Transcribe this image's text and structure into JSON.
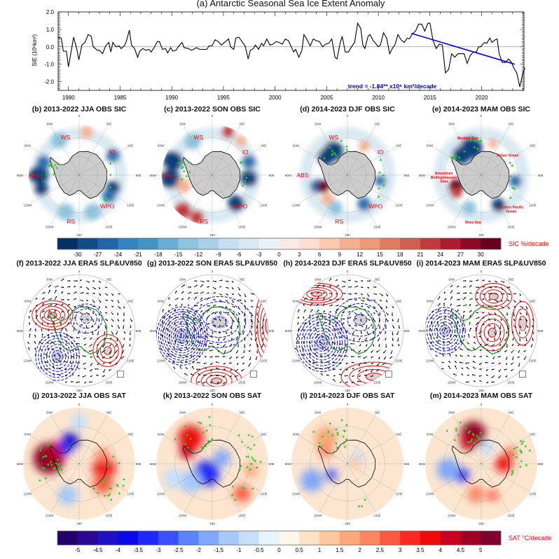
{
  "chart_data": [
    {
      "type": "line",
      "title": "(a) Antarctic Seasonal Sea Ice Extent Anomaly",
      "ylabel": "SIE (10⁶km²)",
      "xlabel": "",
      "ylim": [
        -2.5,
        2.0
      ],
      "xlim": [
        1979,
        2024.1
      ],
      "yticks": [
        "2.0",
        "1.0",
        "0.0",
        "-1.0",
        "-2.0"
      ],
      "ytick_values": [
        2,
        1,
        0,
        -1,
        -2
      ],
      "xticks": [
        "1980",
        "1985",
        "1990",
        "1995",
        "2000",
        "2005",
        "2010",
        "2015",
        "2020"
      ],
      "zero_line": true,
      "series": [
        {
          "color": "#000000",
          "points": [
            [
              1979.0,
              0.55
            ],
            [
              1979.3,
              0.5
            ],
            [
              1979.5,
              -0.25
            ],
            [
              1979.8,
              -0.25
            ],
            [
              1980.0,
              -1.15
            ],
            [
              1980.5,
              0.55
            ],
            [
              1980.8,
              -0.1
            ],
            [
              1981.0,
              -0.75
            ],
            [
              1981.3,
              0.1
            ],
            [
              1981.6,
              0.25
            ],
            [
              1981.9,
              0.7
            ],
            [
              1982.2,
              0.6
            ],
            [
              1982.4,
              0.0
            ],
            [
              1982.8,
              -0.2
            ],
            [
              1983.0,
              -0.2
            ],
            [
              1983.3,
              -0.4
            ],
            [
              1983.6,
              0.05
            ],
            [
              1983.9,
              0.25
            ],
            [
              1984.1,
              -0.3
            ],
            [
              1984.3,
              0.25
            ],
            [
              1984.6,
              0.0
            ],
            [
              1984.9,
              0.05
            ],
            [
              1985.1,
              -0.1
            ],
            [
              1985.4,
              0.05
            ],
            [
              1985.6,
              0.3
            ],
            [
              1985.9,
              0.95
            ],
            [
              1986.1,
              0.1
            ],
            [
              1986.4,
              -0.1
            ],
            [
              1986.7,
              -0.6
            ],
            [
              1986.9,
              -0.25
            ],
            [
              1987.2,
              -0.1
            ],
            [
              1987.5,
              -0.2
            ],
            [
              1987.8,
              -0.15
            ],
            [
              1988.0,
              -0.3
            ],
            [
              1988.3,
              -0.05
            ],
            [
              1988.6,
              0.3
            ],
            [
              1988.8,
              0.3
            ],
            [
              1989.1,
              -0.15
            ],
            [
              1989.4,
              -0.1
            ],
            [
              1989.6,
              -0.35
            ],
            [
              1989.9,
              -0.05
            ],
            [
              1990.1,
              -0.25
            ],
            [
              1990.4,
              -0.2
            ],
            [
              1990.7,
              0.05
            ],
            [
              1991.0,
              0.25
            ],
            [
              1991.2,
              -0.05
            ],
            [
              1991.6,
              -0.1
            ],
            [
              1991.9,
              -0.2
            ],
            [
              1992.1,
              -0.15
            ],
            [
              1992.4,
              -0.05
            ],
            [
              1992.7,
              -0.15
            ],
            [
              1993.0,
              -0.15
            ],
            [
              1993.4,
              -0.15
            ],
            [
              1993.6,
              0.05
            ],
            [
              1993.9,
              0.05
            ],
            [
              1994.2,
              0.4
            ],
            [
              1994.5,
              0.3
            ],
            [
              1994.8,
              0.1
            ],
            [
              1995.2,
              0.3
            ],
            [
              1995.5,
              0.45
            ],
            [
              1995.7,
              0.0
            ],
            [
              1996.0,
              -0.15
            ],
            [
              1996.2,
              0.5
            ],
            [
              1996.5,
              0.55
            ],
            [
              1996.8,
              0.3
            ],
            [
              1997.1,
              0.05
            ],
            [
              1997.4,
              -0.7
            ],
            [
              1997.6,
              -0.2
            ],
            [
              1997.9,
              -0.1
            ],
            [
              1998.1,
              0.1
            ],
            [
              1998.4,
              -0.15
            ],
            [
              1998.7,
              0.2
            ],
            [
              1998.9,
              0.05
            ],
            [
              1999.2,
              0.45
            ],
            [
              1999.5,
              0.1
            ],
            [
              1999.8,
              0.15
            ],
            [
              2000.1,
              0.3
            ],
            [
              2000.4,
              0.25
            ],
            [
              2000.7,
              0.15
            ],
            [
              2001.0,
              0.45
            ],
            [
              2001.3,
              0.35
            ],
            [
              2001.8,
              -0.3
            ],
            [
              2002.0,
              -0.15
            ],
            [
              2002.3,
              -0.6
            ],
            [
              2002.6,
              -0.2
            ],
            [
              2002.8,
              0.7
            ],
            [
              2003.1,
              0.4
            ],
            [
              2003.4,
              0.05
            ],
            [
              2003.7,
              0.45
            ],
            [
              2004.0,
              0.35
            ],
            [
              2004.3,
              0.3
            ],
            [
              2004.6,
              0.0
            ],
            [
              2004.9,
              0.15
            ],
            [
              2005.2,
              0.2
            ],
            [
              2005.5,
              0.45
            ],
            [
              2005.8,
              -0.6
            ],
            [
              2006.0,
              -0.7
            ],
            [
              2006.3,
              0.2
            ],
            [
              2006.5,
              0.6
            ],
            [
              2006.8,
              -0.3
            ],
            [
              2007.1,
              -0.3
            ],
            [
              2007.4,
              0.0
            ],
            [
              2007.7,
              0.25
            ],
            [
              2008.0,
              1.35
            ],
            [
              2008.3,
              1.05
            ],
            [
              2008.5,
              0.1
            ],
            [
              2008.7,
              -0.1
            ],
            [
              2009.0,
              0.6
            ],
            [
              2009.2,
              0.7
            ],
            [
              2009.5,
              0.35
            ],
            [
              2009.8,
              0.15
            ],
            [
              2010.0,
              0.0
            ],
            [
              2010.2,
              0.1
            ],
            [
              2010.5,
              0.8
            ],
            [
              2010.8,
              0.5
            ],
            [
              2011.1,
              -0.4
            ],
            [
              2011.4,
              -0.05
            ],
            [
              2011.6,
              0.1
            ],
            [
              2011.9,
              0.7
            ],
            [
              2012.2,
              0.4
            ],
            [
              2012.5,
              0.25
            ],
            [
              2012.8,
              0.5
            ],
            [
              2013.0,
              0.45
            ],
            [
              2013.3,
              0.75
            ],
            [
              2013.6,
              0.9
            ],
            [
              2013.9,
              1.3
            ],
            [
              2014.2,
              1.3
            ],
            [
              2014.5,
              0.9
            ],
            [
              2014.8,
              1.35
            ],
            [
              2015.0,
              1.35
            ],
            [
              2015.3,
              0.35
            ],
            [
              2015.6,
              -0.1
            ],
            [
              2015.9,
              0.15
            ],
            [
              2016.2,
              0.1
            ],
            [
              2016.5,
              -1.5
            ],
            [
              2016.8,
              -1.3
            ],
            [
              2017.1,
              -0.4
            ],
            [
              2017.4,
              -0.6
            ],
            [
              2017.7,
              -0.4
            ],
            [
              2018.0,
              -0.4
            ],
            [
              2018.3,
              -0.4
            ],
            [
              2018.6,
              -0.95
            ],
            [
              2018.9,
              -0.5
            ],
            [
              2019.2,
              -0.3
            ],
            [
              2019.5,
              -0.3
            ],
            [
              2019.7,
              0.0
            ],
            [
              2019.9,
              0.0
            ],
            [
              2020.1,
              0.15
            ],
            [
              2020.3,
              0.25
            ],
            [
              2020.5,
              0.2
            ],
            [
              2020.8,
              0.5
            ],
            [
              2021.0,
              0.25
            ],
            [
              2021.3,
              0.4
            ],
            [
              2021.5,
              0.45
            ],
            [
              2021.7,
              -0.4
            ],
            [
              2022.0,
              -0.9
            ],
            [
              2022.3,
              -0.9
            ],
            [
              2022.6,
              -0.7
            ],
            [
              2022.9,
              -0.9
            ],
            [
              2023.1,
              -1.2
            ],
            [
              2023.4,
              -1.5
            ],
            [
              2023.7,
              -2.3
            ],
            [
              2024.0,
              -1.5
            ],
            [
              2024.2,
              -1.2
            ]
          ]
        },
        {
          "color": "#0000ff",
          "points": [
            [
              2013.2,
              0.77
            ],
            [
              2023.2,
              -1.0
            ]
          ]
        }
      ],
      "annotation": {
        "text": "trend = -1.84** x10⁶ km²/decade",
        "color": "#0000ff"
      }
    },
    {
      "type": "heatmap",
      "row": "SIC",
      "panels": [
        {
          "title": "(b) 2013-2022 JJA OBS SIC",
          "regions": [
            "WS",
            "IO",
            "ABS",
            "WPO",
            "RS"
          ]
        },
        {
          "title": "(c) 2013-2022 SON OBS SIC",
          "regions": [
            "WS",
            "IO",
            "ASS",
            "WPO",
            "RS"
          ]
        },
        {
          "title": "(d) 2014-2023 DJF OBS SIC",
          "regions": [
            "WS",
            "IO",
            "ABS",
            "WPO",
            "RS"
          ]
        },
        {
          "title": "(e) 2014-2023 MAM OBS SIC",
          "regions": [
            "Weddell Sea",
            "Indian Ocean",
            "Amundsen Bellingshausen Seas",
            "Western Pacific Ocean",
            "Ross Sea"
          ]
        }
      ],
      "colorbar": {
        "label": "SIC %/decade",
        "label_color": "#ff0000",
        "ticks": [
          "-30",
          "-27",
          "-24",
          "-21",
          "-18",
          "-15",
          "-12",
          "-9",
          "-6",
          "-3",
          "0",
          "3",
          "6",
          "9",
          "12",
          "15",
          "18",
          "21",
          "24",
          "27",
          "30"
        ],
        "colors": [
          "#053061",
          "#134b87",
          "#2166ac",
          "#3582c0",
          "#4393c3",
          "#6aaed6",
          "#8ec4de",
          "#a8d1e7",
          "#c6dff0",
          "#d9e9f2",
          "#eaf1f6",
          "#f8ebe6",
          "#fbe0d2",
          "#fac9b0",
          "#f5b08f",
          "#ee9a78",
          "#e07b62",
          "#d0604f",
          "#c13a3c",
          "#ad1b2f",
          "#8b0b27",
          "#67001f"
        ]
      }
    },
    {
      "type": "heatmap",
      "row": "SLP&UV850",
      "panels": [
        {
          "title": "(f) 2013-2022 JJA ERA5 SLP&UV850"
        },
        {
          "title": "(g) 2013-2022 SON ERA5 SLP&UV850"
        },
        {
          "title": "(h) 2014-2023 DJF ERA5 SLP&UV850"
        },
        {
          "title": "(i) 2014-2023 MAM ERA5 SLP&UV850"
        }
      ],
      "contour_colors": {
        "positive": "#ff0000",
        "negative": "#0000ff",
        "coast": "#228b22"
      }
    },
    {
      "type": "heatmap",
      "row": "SAT",
      "panels": [
        {
          "title": "(j) 2013-2022 JJA OBS SAT"
        },
        {
          "title": "(k) 2013-2022 SON OBS SAT"
        },
        {
          "title": "(l) 2014-2023 DJF OBS SAT"
        },
        {
          "title": "(m) 2014-2023 MAM OBS SAT"
        }
      ],
      "colorbar": {
        "label": "SAT °C/decade",
        "label_color": "#ff0000",
        "ticks": [
          "-5",
          "-4.5",
          "-4",
          "-3.5",
          "-3",
          "-2.5",
          "-2",
          "-1.5",
          "-1",
          "-0.5",
          "0",
          "0.5",
          "1",
          "1.5",
          "2",
          "2.5",
          "3",
          "3.5",
          "4",
          "4.5",
          "5"
        ],
        "colors": [
          "#24006a",
          "#2a0896",
          "#2010c4",
          "#0a0ae8",
          "#1e28fa",
          "#3a50fa",
          "#5a82fa",
          "#80a8fa",
          "#a6c8fa",
          "#c6e0fa",
          "#e6f4fc",
          "#fff6ea",
          "#fee2c6",
          "#fec89e",
          "#fca878",
          "#fc8660",
          "#fc5a40",
          "#fc2a1e",
          "#f00a0a",
          "#c8001e",
          "#a00026",
          "#800030"
        ]
      }
    }
  ],
  "map_lon_labels": [
    "0",
    "30E",
    "60E",
    "90E",
    "120E",
    "150E",
    "180",
    "150W",
    "120W",
    "90W",
    "60W",
    "30W"
  ]
}
